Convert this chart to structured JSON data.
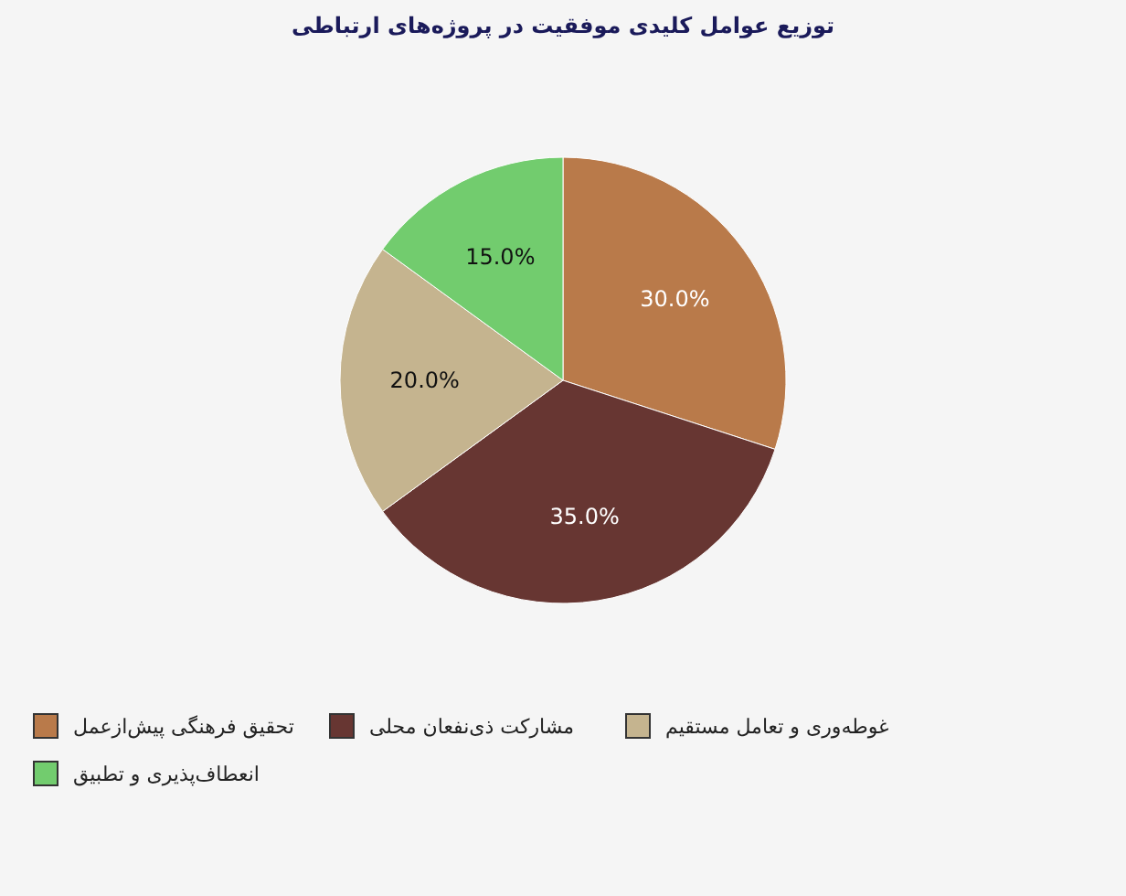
{
  "chart_data": {
    "type": "pie",
    "title": "توزیع عوامل کلیدی موفقیت در پروژه‌های ارتباطی",
    "categories": [
      "تحقیق فرهنگی پیش‌ازعمل",
      "مشارکت ذی‌نفعان محلی",
      "غوطه‌وری و تعامل مستقیم",
      "انعطاف‌پذیری و تطبیق"
    ],
    "values": [
      30,
      35,
      20,
      15
    ],
    "colors": [
      "#b97a4a",
      "#673632",
      "#c5b48f",
      "#72cc6e"
    ],
    "value_labels": [
      "30.0%",
      "35.0%",
      "20.0%",
      "15.0%"
    ],
    "legend": "bottom"
  }
}
